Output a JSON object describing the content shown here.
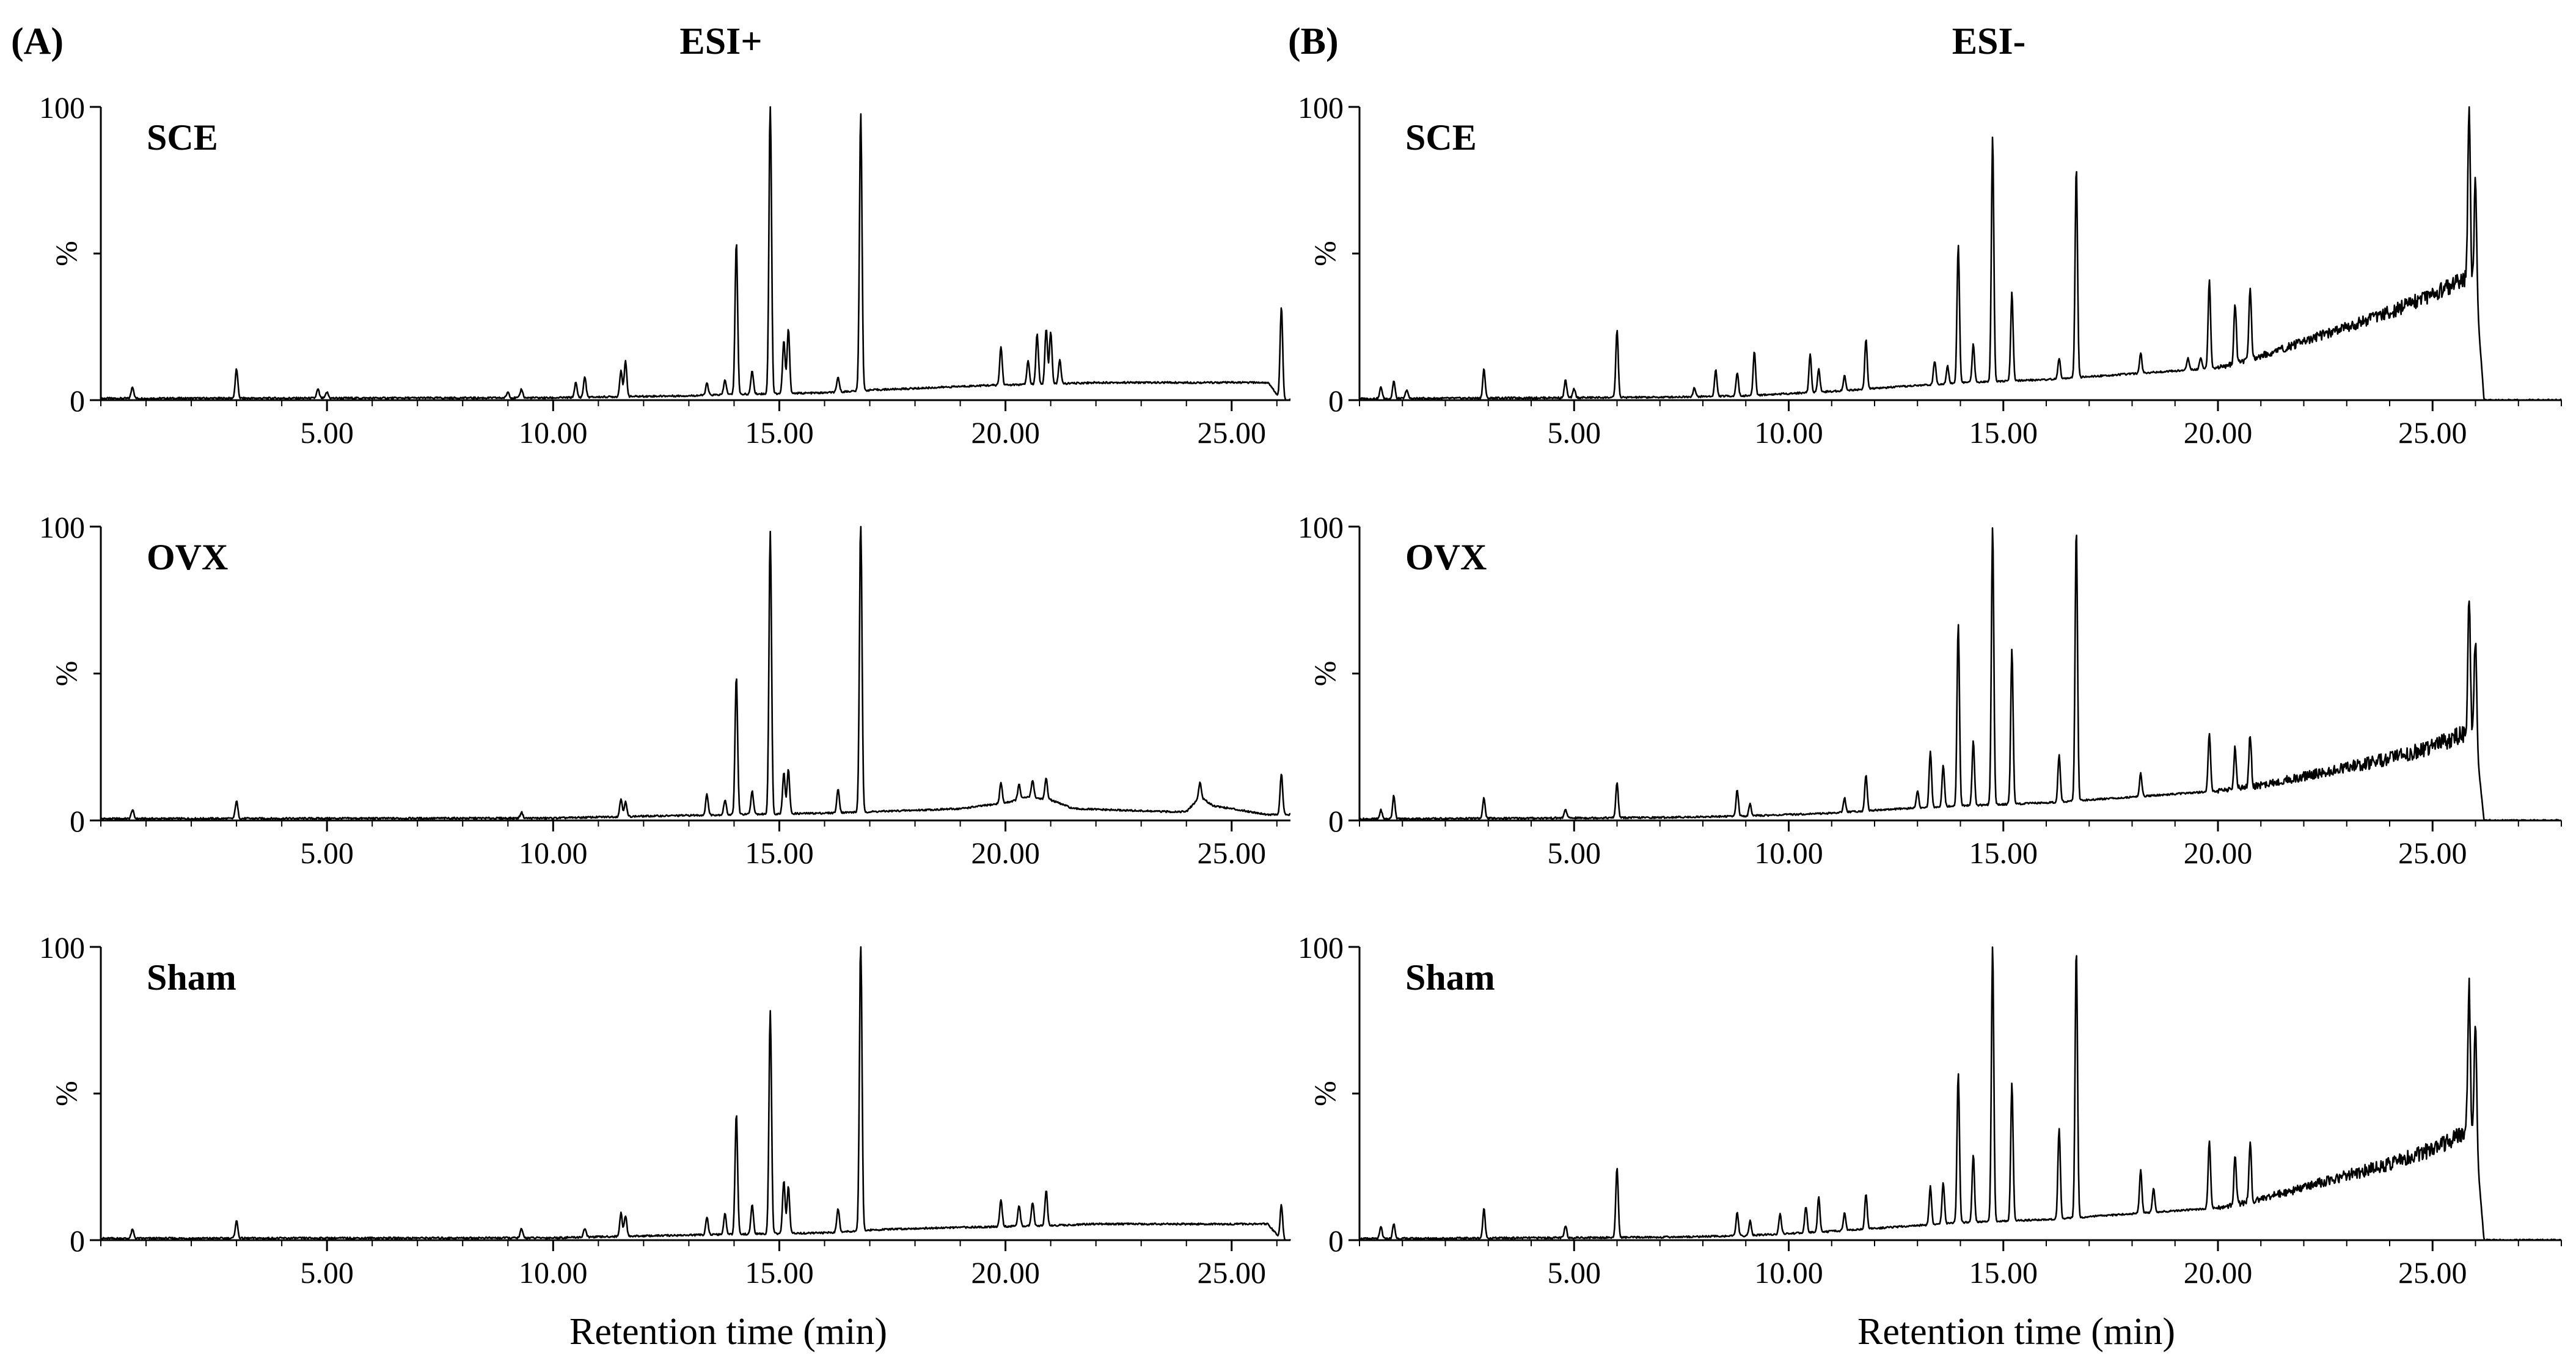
{
  "figure": {
    "panel_a_label": "(A)",
    "panel_b_label": "(B)",
    "panel_a_title": "ESI+",
    "panel_b_title": "ESI-",
    "xlabel": "Retention time (min)",
    "ylabel": "%",
    "ytick_top": "100",
    "ytick_bottom": "0",
    "xticks": [
      "5.00",
      "10.00",
      "15.00",
      "20.00",
      "25.00"
    ],
    "colors": {
      "trace": "#000000",
      "background": "#ffffff"
    }
  },
  "chart_data": [
    {
      "type": "line",
      "id": "A-SCE",
      "title": "SCE",
      "panel": "ESI+",
      "xlim": [
        0,
        26.3
      ],
      "ylim": [
        0,
        100
      ],
      "xlabel": "Retention time (min)",
      "ylabel": "%",
      "baseline": [
        [
          0,
          0.6
        ],
        [
          10,
          0.8
        ],
        [
          11.5,
          1.2
        ],
        [
          13,
          1.5
        ],
        [
          14,
          2
        ],
        [
          16,
          2.5
        ],
        [
          17.1,
          3.5
        ],
        [
          18,
          4
        ],
        [
          19.5,
          5
        ],
        [
          21,
          5.5
        ],
        [
          22,
          6
        ],
        [
          25.8,
          6
        ],
        [
          26.1,
          0
        ]
      ],
      "peaks": [
        [
          0.7,
          4
        ],
        [
          3.0,
          10
        ],
        [
          4.8,
          3
        ],
        [
          5.0,
          2
        ],
        [
          9.0,
          2
        ],
        [
          9.3,
          3
        ],
        [
          10.5,
          5
        ],
        [
          10.7,
          7
        ],
        [
          11.5,
          9
        ],
        [
          11.6,
          12
        ],
        [
          13.4,
          4
        ],
        [
          13.8,
          5
        ],
        [
          14.05,
          52
        ],
        [
          14.4,
          8
        ],
        [
          14.8,
          100
        ],
        [
          15.1,
          18
        ],
        [
          15.2,
          22
        ],
        [
          16.3,
          5
        ],
        [
          16.8,
          95
        ],
        [
          19.9,
          13
        ],
        [
          20.5,
          8
        ],
        [
          20.7,
          17
        ],
        [
          20.9,
          19
        ],
        [
          21.0,
          18
        ],
        [
          21.2,
          8
        ],
        [
          26.1,
          32
        ]
      ]
    },
    {
      "type": "line",
      "id": "A-OVX",
      "title": "OVX",
      "panel": "ESI+",
      "xlim": [
        0,
        26.3
      ],
      "ylim": [
        0,
        100
      ],
      "xlabel": "Retention time (min)",
      "ylabel": "%",
      "baseline": [
        [
          0,
          0.6
        ],
        [
          10,
          0.8
        ],
        [
          11.5,
          1.3
        ],
        [
          14,
          2
        ],
        [
          16,
          2.5
        ],
        [
          17.1,
          3
        ],
        [
          19,
          4
        ],
        [
          20,
          6
        ],
        [
          20.5,
          8
        ],
        [
          21,
          7
        ],
        [
          21.5,
          4
        ],
        [
          23.5,
          3
        ],
        [
          24.0,
          3
        ],
        [
          24.3,
          8
        ],
        [
          24.6,
          5
        ],
        [
          25.8,
          2
        ],
        [
          26.0,
          2
        ]
      ],
      "peaks": [
        [
          0.7,
          3
        ],
        [
          3.0,
          6
        ],
        [
          9.3,
          2
        ],
        [
          11.5,
          6
        ],
        [
          11.6,
          5
        ],
        [
          13.4,
          7
        ],
        [
          13.8,
          5
        ],
        [
          14.05,
          47
        ],
        [
          14.4,
          8
        ],
        [
          14.8,
          96
        ],
        [
          15.1,
          14
        ],
        [
          15.2,
          15
        ],
        [
          16.3,
          8
        ],
        [
          16.8,
          100
        ],
        [
          19.9,
          7
        ],
        [
          20.3,
          5
        ],
        [
          20.6,
          6
        ],
        [
          20.9,
          7
        ],
        [
          24.3,
          5
        ],
        [
          26.1,
          14
        ]
      ]
    },
    {
      "type": "line",
      "id": "A-Sham",
      "title": "Sham",
      "panel": "ESI+",
      "xlim": [
        0,
        26.3
      ],
      "ylim": [
        0,
        100
      ],
      "xlabel": "Retention time (min)",
      "ylabel": "%",
      "baseline": [
        [
          0,
          0.6
        ],
        [
          10,
          0.8
        ],
        [
          11.5,
          1.3
        ],
        [
          14,
          2
        ],
        [
          16,
          2.5
        ],
        [
          17.1,
          3.5
        ],
        [
          18,
          4
        ],
        [
          19.5,
          4.5
        ],
        [
          21,
          5
        ],
        [
          22,
          5.5
        ],
        [
          25.8,
          5.5
        ],
        [
          26.1,
          0
        ]
      ],
      "peaks": [
        [
          0.7,
          3
        ],
        [
          3.0,
          6
        ],
        [
          9.3,
          3
        ],
        [
          10.7,
          3
        ],
        [
          11.5,
          8
        ],
        [
          11.6,
          7
        ],
        [
          13.4,
          6
        ],
        [
          13.8,
          7
        ],
        [
          14.05,
          41
        ],
        [
          14.4,
          10
        ],
        [
          14.8,
          76
        ],
        [
          15.1,
          18
        ],
        [
          15.2,
          16
        ],
        [
          16.3,
          8
        ],
        [
          16.8,
          100
        ],
        [
          19.9,
          9
        ],
        [
          20.3,
          7
        ],
        [
          20.6,
          8
        ],
        [
          20.9,
          12
        ],
        [
          26.1,
          12
        ]
      ]
    },
    {
      "type": "line",
      "id": "B-SCE",
      "title": "SCE",
      "panel": "ESI-",
      "xlim": [
        0,
        28.0
      ],
      "ylim": [
        0,
        100
      ],
      "xlabel": "Retention time (min)",
      "ylabel": "%",
      "baseline": [
        [
          0,
          0.5
        ],
        [
          7,
          1
        ],
        [
          9,
          1.5
        ],
        [
          11,
          3
        ],
        [
          12,
          4
        ],
        [
          14,
          6
        ],
        [
          16,
          7
        ],
        [
          17,
          8
        ],
        [
          18,
          9
        ],
        [
          19,
          10
        ],
        [
          20,
          11
        ],
        [
          21,
          15
        ],
        [
          22,
          20
        ],
        [
          23,
          25
        ],
        [
          24,
          30
        ],
        [
          25,
          36
        ],
        [
          25.8,
          42
        ],
        [
          26.0,
          40
        ],
        [
          26.2,
          0
        ],
        [
          28.0,
          0
        ]
      ],
      "peaks": [
        [
          0.5,
          4
        ],
        [
          0.8,
          6
        ],
        [
          1.1,
          3
        ],
        [
          2.9,
          10
        ],
        [
          4.8,
          6
        ],
        [
          5.0,
          3
        ],
        [
          6.0,
          23
        ],
        [
          7.8,
          3
        ],
        [
          8.3,
          9
        ],
        [
          8.8,
          8
        ],
        [
          9.2,
          15
        ],
        [
          10.5,
          13
        ],
        [
          10.7,
          8
        ],
        [
          11.3,
          5
        ],
        [
          11.8,
          17
        ],
        [
          13.4,
          8
        ],
        [
          13.7,
          6
        ],
        [
          13.95,
          47
        ],
        [
          14.3,
          13
        ],
        [
          14.75,
          84
        ],
        [
          15.2,
          30
        ],
        [
          16.3,
          7
        ],
        [
          16.7,
          72
        ],
        [
          18.2,
          7
        ],
        [
          19.3,
          4
        ],
        [
          19.6,
          4
        ],
        [
          19.8,
          30
        ],
        [
          20.4,
          20
        ],
        [
          20.75,
          25
        ],
        [
          25.85,
          58
        ],
        [
          26.0,
          35
        ]
      ]
    },
    {
      "type": "line",
      "id": "B-OVX",
      "title": "OVX",
      "panel": "ESI-",
      "xlim": [
        0,
        28.0
      ],
      "ylim": [
        0,
        100
      ],
      "xlabel": "Retention time (min)",
      "ylabel": "%",
      "baseline": [
        [
          0,
          0.5
        ],
        [
          7,
          1
        ],
        [
          9,
          1.5
        ],
        [
          11,
          2.5
        ],
        [
          12,
          3.5
        ],
        [
          14,
          5
        ],
        [
          16,
          6
        ],
        [
          17,
          7
        ],
        [
          18,
          8
        ],
        [
          19,
          9
        ],
        [
          20,
          10
        ],
        [
          21,
          12
        ],
        [
          22,
          15
        ],
        [
          23,
          18
        ],
        [
          24,
          21
        ],
        [
          25,
          25
        ],
        [
          25.8,
          30
        ],
        [
          26.0,
          28
        ],
        [
          26.2,
          0
        ],
        [
          28.0,
          0
        ]
      ],
      "peaks": [
        [
          0.5,
          3
        ],
        [
          0.8,
          8
        ],
        [
          2.9,
          7
        ],
        [
          4.8,
          3
        ],
        [
          6.0,
          12
        ],
        [
          8.8,
          9
        ],
        [
          9.1,
          4
        ],
        [
          11.3,
          5
        ],
        [
          11.8,
          12
        ],
        [
          13.0,
          6
        ],
        [
          13.3,
          19
        ],
        [
          13.6,
          14
        ],
        [
          13.95,
          62
        ],
        [
          14.3,
          22
        ],
        [
          14.75,
          95
        ],
        [
          15.2,
          53
        ],
        [
          16.3,
          16
        ],
        [
          16.7,
          93
        ],
        [
          18.2,
          8
        ],
        [
          19.8,
          20
        ],
        [
          20.4,
          14
        ],
        [
          20.75,
          18
        ],
        [
          25.85,
          47
        ],
        [
          26.0,
          35
        ]
      ]
    },
    {
      "type": "line",
      "id": "B-Sham",
      "title": "Sham",
      "panel": "ESI-",
      "xlim": [
        0,
        28.0
      ],
      "ylim": [
        0,
        100
      ],
      "xlabel": "Retention time (min)",
      "ylabel": "%",
      "baseline": [
        [
          0,
          0.5
        ],
        [
          7,
          1
        ],
        [
          9,
          1.5
        ],
        [
          11,
          3
        ],
        [
          12,
          4
        ],
        [
          14,
          6
        ],
        [
          16,
          7
        ],
        [
          17,
          8
        ],
        [
          18,
          9
        ],
        [
          19,
          10
        ],
        [
          20,
          11
        ],
        [
          21,
          14
        ],
        [
          22,
          18
        ],
        [
          23,
          22
        ],
        [
          24,
          26
        ],
        [
          25,
          31
        ],
        [
          25.8,
          37
        ],
        [
          26.0,
          35
        ],
        [
          26.2,
          0
        ],
        [
          28.0,
          0
        ]
      ],
      "peaks": [
        [
          0.5,
          4
        ],
        [
          0.8,
          5
        ],
        [
          2.9,
          10
        ],
        [
          4.8,
          4
        ],
        [
          6.0,
          24
        ],
        [
          8.8,
          8
        ],
        [
          9.1,
          5
        ],
        [
          9.8,
          7
        ],
        [
          10.4,
          9
        ],
        [
          10.7,
          12
        ],
        [
          11.3,
          6
        ],
        [
          11.8,
          12
        ],
        [
          13.3,
          13
        ],
        [
          13.6,
          14
        ],
        [
          13.95,
          51
        ],
        [
          14.3,
          23
        ],
        [
          14.75,
          94
        ],
        [
          15.2,
          47
        ],
        [
          16.3,
          31
        ],
        [
          16.7,
          92
        ],
        [
          18.2,
          15
        ],
        [
          18.5,
          8
        ],
        [
          19.8,
          23
        ],
        [
          20.4,
          16
        ],
        [
          20.75,
          20
        ],
        [
          25.85,
          51
        ],
        [
          26.0,
          40
        ]
      ]
    }
  ]
}
